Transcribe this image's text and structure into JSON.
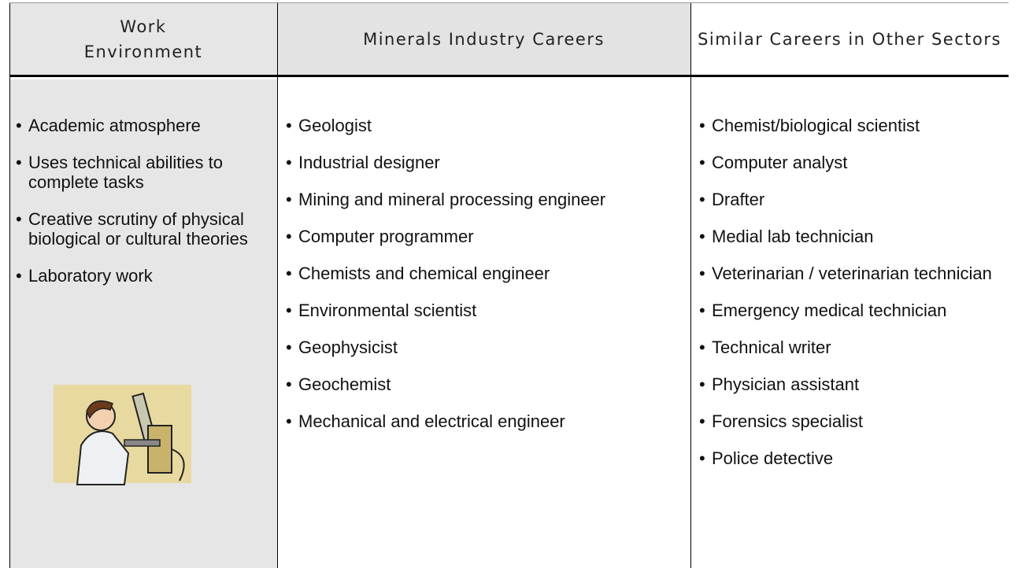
{
  "table": {
    "headers": [
      "Work Environment",
      "Minerals Industry Careers",
      "Similar Careers in Other Sectors"
    ],
    "columns": [
      [
        "Academic atmosphere",
        "Uses technical abilities to complete tasks",
        "Creative scrutiny of physical biological or cultural theories",
        "Laboratory work"
      ],
      [
        "Geologist",
        "Industrial designer",
        "Mining and mineral processing engineer",
        "Computer programmer",
        "Chemists and chemical engineer",
        "Environmental scientist",
        "Geophysicist",
        "Geochemist",
        "Mechanical and electrical engineer"
      ],
      [
        "Chemist/biological scientist",
        "Computer analyst",
        "Drafter",
        "Medial lab technician",
        "Veterinarian / veterinarian technician",
        "Emergency medical technician",
        "Technical writer",
        "Physician assistant",
        "Forensics specialist",
        "Police detective"
      ]
    ]
  }
}
